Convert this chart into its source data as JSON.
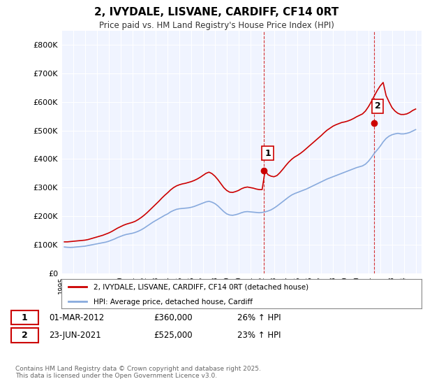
{
  "title": "2, IVYDALE, LISVANE, CARDIFF, CF14 0RT",
  "subtitle": "Price paid vs. HM Land Registry's House Price Index (HPI)",
  "ylabel_ticks": [
    "£0",
    "£100K",
    "£200K",
    "£300K",
    "£400K",
    "£500K",
    "£600K",
    "£700K",
    "£800K"
  ],
  "ytick_values": [
    0,
    100000,
    200000,
    300000,
    400000,
    500000,
    600000,
    700000,
    800000
  ],
  "ylim": [
    0,
    850000
  ],
  "xlim_start": 1995.0,
  "xlim_end": 2025.5,
  "xtick_years": [
    1995,
    1996,
    1997,
    1998,
    1999,
    2000,
    2001,
    2002,
    2003,
    2004,
    2005,
    2006,
    2007,
    2008,
    2009,
    2010,
    2011,
    2012,
    2013,
    2014,
    2015,
    2016,
    2017,
    2018,
    2019,
    2020,
    2021,
    2022,
    2023,
    2024,
    2025
  ],
  "sale1_x": 2012.17,
  "sale1_y": 360000,
  "sale1_label": "1",
  "sale2_x": 2021.48,
  "sale2_y": 525000,
  "sale2_label": "2",
  "line1_color": "#cc0000",
  "line2_color": "#88aadd",
  "sale_marker_color": "#cc0000",
  "vline_color": "#cc0000",
  "background_color": "#f0f4ff",
  "plot_bg_color": "#f0f4ff",
  "grid_color": "#ffffff",
  "legend_label1": "2, IVYDALE, LISVANE, CARDIFF, CF14 0RT (detached house)",
  "legend_label2": "HPI: Average price, detached house, Cardiff",
  "annotation1_date": "01-MAR-2012",
  "annotation1_price": "£360,000",
  "annotation1_hpi": "26% ↑ HPI",
  "annotation2_date": "23-JUN-2021",
  "annotation2_price": "£525,000",
  "annotation2_hpi": "23% ↑ HPI",
  "footnote": "Contains HM Land Registry data © Crown copyright and database right 2025.\nThis data is licensed under the Open Government Licence v3.0.",
  "hpi_data": {
    "years": [
      1995.25,
      1995.5,
      1995.75,
      1996.0,
      1996.25,
      1996.5,
      1996.75,
      1997.0,
      1997.25,
      1997.5,
      1997.75,
      1998.0,
      1998.25,
      1998.5,
      1998.75,
      1999.0,
      1999.25,
      1999.5,
      1999.75,
      2000.0,
      2000.25,
      2000.5,
      2000.75,
      2001.0,
      2001.25,
      2001.5,
      2001.75,
      2002.0,
      2002.25,
      2002.5,
      2002.75,
      2003.0,
      2003.25,
      2003.5,
      2003.75,
      2004.0,
      2004.25,
      2004.5,
      2004.75,
      2005.0,
      2005.25,
      2005.5,
      2005.75,
      2006.0,
      2006.25,
      2006.5,
      2006.75,
      2007.0,
      2007.25,
      2007.5,
      2007.75,
      2008.0,
      2008.25,
      2008.5,
      2008.75,
      2009.0,
      2009.25,
      2009.5,
      2009.75,
      2010.0,
      2010.25,
      2010.5,
      2010.75,
      2011.0,
      2011.25,
      2011.5,
      2011.75,
      2012.0,
      2012.25,
      2012.5,
      2012.75,
      2013.0,
      2013.25,
      2013.5,
      2013.75,
      2014.0,
      2014.25,
      2014.5,
      2014.75,
      2015.0,
      2015.25,
      2015.5,
      2015.75,
      2016.0,
      2016.25,
      2016.5,
      2016.75,
      2017.0,
      2017.25,
      2017.5,
      2017.75,
      2018.0,
      2018.25,
      2018.5,
      2018.75,
      2019.0,
      2019.25,
      2019.5,
      2019.75,
      2020.0,
      2020.25,
      2020.5,
      2020.75,
      2021.0,
      2021.25,
      2021.5,
      2021.75,
      2022.0,
      2022.25,
      2022.5,
      2022.75,
      2023.0,
      2023.25,
      2023.5,
      2023.75,
      2024.0,
      2024.25,
      2024.5,
      2024.75,
      2025.0
    ],
    "values": [
      92000,
      91000,
      90500,
      91000,
      92000,
      93000,
      94000,
      95000,
      97000,
      99000,
      101000,
      103000,
      105000,
      107000,
      109000,
      112000,
      116000,
      120000,
      125000,
      129000,
      133000,
      136000,
      138000,
      140000,
      143000,
      147000,
      152000,
      158000,
      165000,
      172000,
      179000,
      185000,
      191000,
      197000,
      203000,
      208000,
      215000,
      220000,
      224000,
      226000,
      227000,
      228000,
      229000,
      231000,
      234000,
      238000,
      242000,
      246000,
      250000,
      252000,
      249000,
      244000,
      236000,
      226000,
      216000,
      208000,
      204000,
      203000,
      205000,
      208000,
      212000,
      215000,
      216000,
      215000,
      214000,
      213000,
      212000,
      213000,
      215000,
      218000,
      222000,
      228000,
      235000,
      243000,
      251000,
      259000,
      267000,
      274000,
      279000,
      283000,
      287000,
      291000,
      295000,
      300000,
      305000,
      310000,
      315000,
      320000,
      325000,
      330000,
      334000,
      338000,
      342000,
      346000,
      350000,
      354000,
      358000,
      362000,
      366000,
      370000,
      373000,
      376000,
      382000,
      392000,
      405000,
      420000,
      432000,
      445000,
      460000,
      472000,
      480000,
      485000,
      488000,
      490000,
      488000,
      488000,
      490000,
      493000,
      498000,
      503000
    ]
  },
  "property_data": {
    "years": [
      1995.25,
      1995.5,
      1995.75,
      1996.0,
      1996.25,
      1996.5,
      1996.75,
      1997.0,
      1997.25,
      1997.5,
      1997.75,
      1998.0,
      1998.25,
      1998.5,
      1998.75,
      1999.0,
      1999.25,
      1999.5,
      1999.75,
      2000.0,
      2000.25,
      2000.5,
      2000.75,
      2001.0,
      2001.25,
      2001.5,
      2001.75,
      2002.0,
      2002.25,
      2002.5,
      2002.75,
      2003.0,
      2003.25,
      2003.5,
      2003.75,
      2004.0,
      2004.25,
      2004.5,
      2004.75,
      2005.0,
      2005.25,
      2005.5,
      2005.75,
      2006.0,
      2006.25,
      2006.5,
      2006.75,
      2007.0,
      2007.25,
      2007.5,
      2007.75,
      2008.0,
      2008.25,
      2008.5,
      2008.75,
      2009.0,
      2009.25,
      2009.5,
      2009.75,
      2010.0,
      2010.25,
      2010.5,
      2010.75,
      2011.0,
      2011.25,
      2011.5,
      2011.75,
      2012.0,
      2012.25,
      2012.5,
      2012.75,
      2013.0,
      2013.25,
      2013.5,
      2013.75,
      2014.0,
      2014.25,
      2014.5,
      2014.75,
      2015.0,
      2015.25,
      2015.5,
      2015.75,
      2016.0,
      2016.25,
      2016.5,
      2016.75,
      2017.0,
      2017.25,
      2017.5,
      2017.75,
      2018.0,
      2018.25,
      2018.5,
      2018.75,
      2019.0,
      2019.25,
      2019.5,
      2019.75,
      2020.0,
      2020.25,
      2020.5,
      2020.75,
      2021.0,
      2021.25,
      2021.5,
      2021.75,
      2022.0,
      2022.25,
      2022.5,
      2022.75,
      2023.0,
      2023.25,
      2023.5,
      2023.75,
      2024.0,
      2024.25,
      2024.5,
      2024.75,
      2025.0
    ],
    "values": [
      110000,
      110000,
      111000,
      112000,
      113000,
      114000,
      115000,
      116000,
      118000,
      121000,
      124000,
      127000,
      130000,
      133000,
      137000,
      141000,
      146000,
      152000,
      158000,
      163000,
      168000,
      172000,
      175000,
      178000,
      182000,
      188000,
      195000,
      203000,
      212000,
      222000,
      232000,
      242000,
      252000,
      263000,
      273000,
      282000,
      292000,
      300000,
      306000,
      310000,
      313000,
      315000,
      318000,
      321000,
      325000,
      330000,
      336000,
      343000,
      350000,
      354000,
      349000,
      340000,
      328000,
      314000,
      300000,
      290000,
      284000,
      283000,
      286000,
      290000,
      296000,
      300000,
      302000,
      300000,
      298000,
      295000,
      293000,
      293000,
      360000,
      345000,
      340000,
      338000,
      342000,
      352000,
      364000,
      377000,
      389000,
      399000,
      407000,
      413000,
      420000,
      428000,
      437000,
      446000,
      455000,
      464000,
      473000,
      482000,
      492000,
      501000,
      508000,
      515000,
      520000,
      524000,
      528000,
      530000,
      533000,
      537000,
      542000,
      548000,
      553000,
      558000,
      568000,
      583000,
      601000,
      621000,
      640000,
      656000,
      668000,
      622000,
      600000,
      580000,
      568000,
      560000,
      556000,
      556000,
      558000,
      563000,
      570000,
      575000
    ]
  }
}
